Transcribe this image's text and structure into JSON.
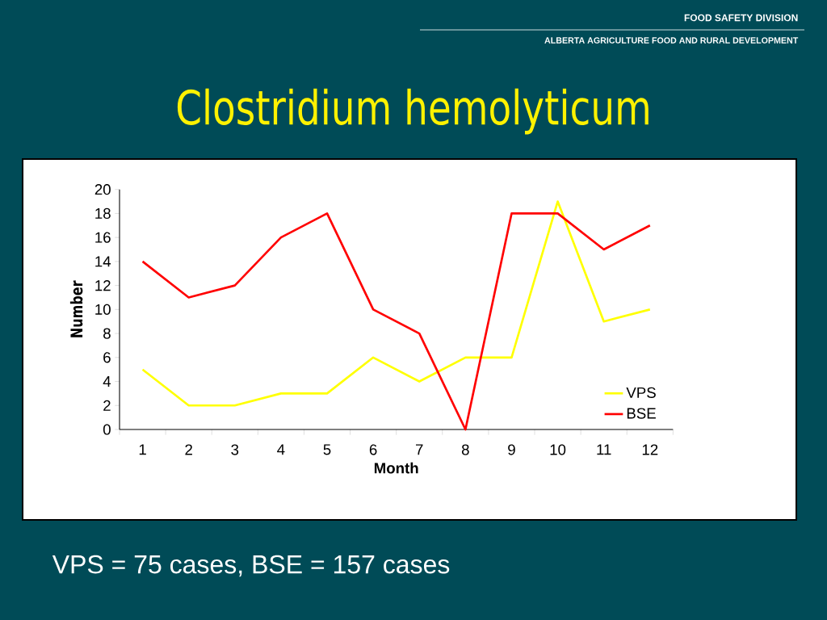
{
  "chart_data": {
    "type": "line",
    "title": "Clostridium hemolyticum",
    "xlabel": "Month",
    "ylabel": "Number",
    "categories": [
      "1",
      "2",
      "3",
      "4",
      "5",
      "6",
      "7",
      "8",
      "9",
      "10",
      "11",
      "12"
    ],
    "series": [
      {
        "name": "VPS",
        "color": "#ffff00",
        "values": [
          5,
          2,
          2,
          3,
          3,
          6,
          4,
          6,
          6,
          19,
          9,
          10
        ]
      },
      {
        "name": "BSE",
        "color": "#ff0000",
        "values": [
          14,
          11,
          12,
          16,
          18,
          10,
          8,
          0,
          18,
          18,
          15,
          17
        ]
      }
    ],
    "ylim": [
      0,
      20
    ],
    "yticks": [
      0,
      2,
      4,
      6,
      8,
      10,
      12,
      14,
      16,
      18,
      20
    ],
    "legend": "bottom right",
    "marker": "none",
    "line_style": "solid",
    "grid": false,
    "annotations": [
      "FOOD SAFETY DIVISION",
      "ALBERTA AGRICULTURE FOOD AND RURAL DEVELOPMENT",
      "VPS = 75 cases, BSE = 157 cases"
    ]
  }
}
